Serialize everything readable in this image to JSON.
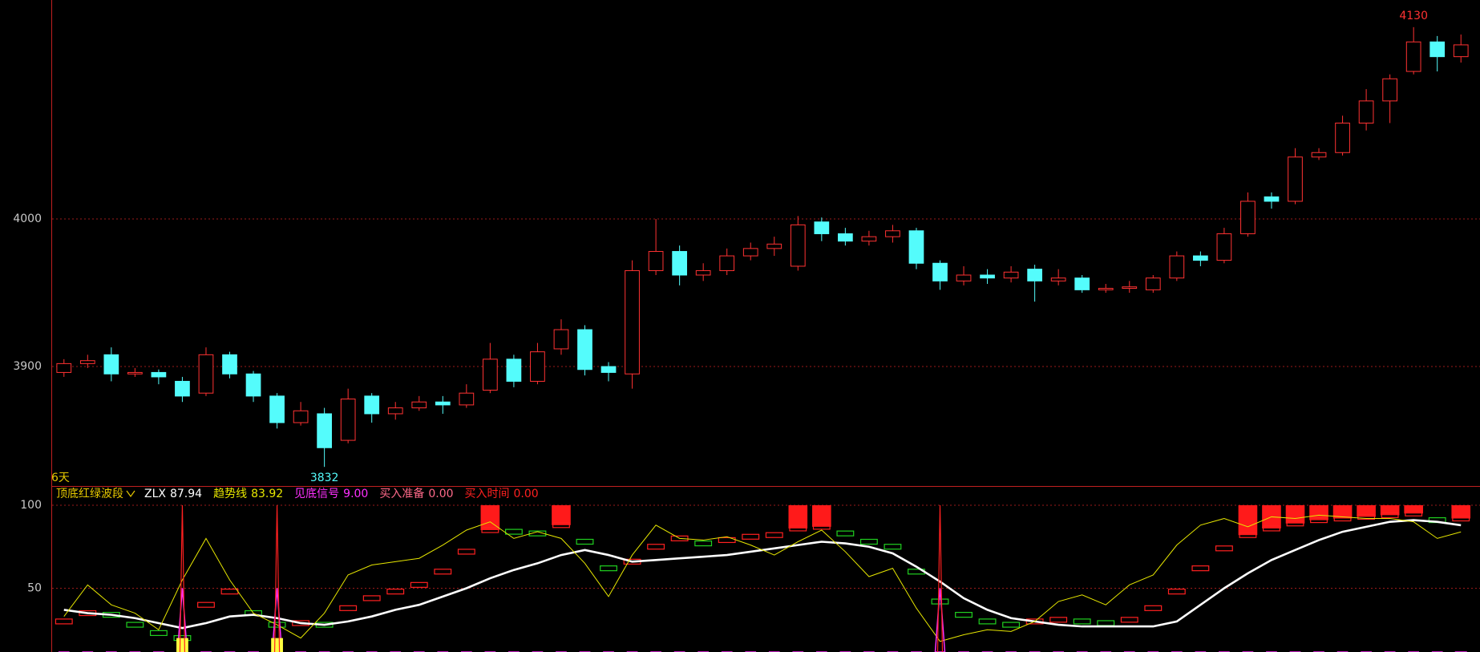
{
  "chart_data": [
    {
      "type": "candlestick",
      "period_label": "6天",
      "ylim": [
        3819.6,
        4148.4
      ],
      "yticks": [
        3900,
        4000
      ],
      "grid": true,
      "up_color": "#ff3232",
      "down_color": "#54fcfc",
      "open": [
        3896,
        3902,
        3908,
        3895,
        3896,
        3890,
        3882,
        3908,
        3895,
        3880,
        3862,
        3868,
        3850,
        3880,
        3868,
        3872,
        3876,
        3874,
        3884,
        3905,
        3890,
        3912,
        3925,
        3900,
        3895,
        3965,
        3978,
        3962,
        3965,
        3975,
        3980,
        3968,
        3998,
        3990,
        3985,
        3988,
        3992,
        3970,
        3958,
        3962,
        3960,
        3966,
        3958,
        3960,
        3952,
        3953,
        3952,
        3960,
        3975,
        3972,
        3990,
        4015,
        4012,
        4042,
        4045,
        4065,
        4080,
        4100,
        4120,
        4110
      ],
      "high": [
        3905,
        3908,
        3913,
        3899,
        3898,
        3893,
        3913,
        3910,
        3897,
        3882,
        3876,
        3872,
        3885,
        3882,
        3876,
        3880,
        3880,
        3888,
        3916,
        3908,
        3916,
        3932,
        3928,
        3903,
        3972,
        4000,
        3982,
        3970,
        3980,
        3984,
        3988,
        4002,
        4001,
        3994,
        3992,
        3996,
        3994,
        3972,
        3968,
        3966,
        3968,
        3969,
        3966,
        3962,
        3956,
        3958,
        3962,
        3978,
        3978,
        3994,
        4018,
        4018,
        4048,
        4048,
        4070,
        4088,
        4098,
        4130,
        4124,
        4125
      ],
      "low": [
        3893,
        3899,
        3890,
        3893,
        3888,
        3876,
        3880,
        3892,
        3876,
        3858,
        3860,
        3832,
        3848,
        3862,
        3864,
        3870,
        3868,
        3872,
        3882,
        3886,
        3888,
        3908,
        3894,
        3890,
        3885,
        3962,
        3955,
        3958,
        3962,
        3972,
        3975,
        3965,
        3985,
        3982,
        3982,
        3984,
        3966,
        3952,
        3955,
        3956,
        3957,
        3944,
        3955,
        3950,
        3950,
        3950,
        3950,
        3958,
        3968,
        3970,
        3988,
        4007,
        4010,
        4040,
        4043,
        4060,
        4065,
        4098,
        4100,
        4106
      ],
      "close": [
        3902,
        3904,
        3895,
        3896,
        3893,
        3880,
        3908,
        3895,
        3880,
        3862,
        3870,
        3845,
        3878,
        3868,
        3872,
        3876,
        3874,
        3882,
        3905,
        3890,
        3910,
        3925,
        3898,
        3896,
        3965,
        3978,
        3962,
        3965,
        3975,
        3980,
        3983,
        3996,
        3990,
        3985,
        3988,
        3992,
        3970,
        3958,
        3962,
        3960,
        3964,
        3958,
        3960,
        3952,
        3953,
        3954,
        3960,
        3975,
        3972,
        3990,
        4012,
        4012,
        4042,
        4045,
        4065,
        4080,
        4095,
        4120,
        4110,
        4118
      ],
      "annotations": [
        {
          "value": 4130,
          "label": "4130",
          "color": "#ff3232"
        },
        {
          "value": 3832,
          "label": "3832",
          "color": "#54fcfc"
        }
      ]
    },
    {
      "type": "line",
      "title": "顶底红绿波段",
      "ylim": [
        11.6,
        110.6
      ],
      "yticks": [
        50,
        100
      ],
      "grid": true,
      "band": {
        "up_color": "#ff2020",
        "down_color": "#20d020",
        "values": [
          30,
          35,
          34,
          28,
          23,
          20,
          40,
          48,
          35,
          28,
          29,
          28,
          38,
          44,
          48,
          52,
          60,
          72,
          85,
          84,
          83,
          88,
          78,
          62,
          66,
          75,
          80,
          77,
          79,
          81,
          82,
          86,
          87,
          83,
          78,
          75,
          60,
          42,
          34,
          30,
          28,
          30,
          31,
          30,
          29,
          31,
          38,
          48,
          62,
          74,
          82,
          86,
          89,
          91,
          92,
          93,
          94,
          95,
          91,
          92
        ],
        "top": [
          null,
          null,
          null,
          null,
          null,
          null,
          null,
          null,
          null,
          null,
          null,
          null,
          null,
          null,
          null,
          null,
          null,
          null,
          100,
          null,
          null,
          100,
          null,
          null,
          null,
          null,
          null,
          null,
          null,
          null,
          null,
          100,
          100,
          null,
          null,
          null,
          null,
          null,
          null,
          null,
          null,
          null,
          null,
          null,
          null,
          null,
          null,
          null,
          null,
          null,
          100,
          100,
          100,
          100,
          100,
          100,
          100,
          100,
          null,
          100
        ]
      },
      "series": [
        {
          "name": "ZLX",
          "color": "#ffffff",
          "style": "line",
          "last_label": "87.94",
          "values": [
            37,
            35,
            34,
            32,
            29,
            26,
            29,
            33,
            34,
            32,
            29,
            28,
            30,
            33,
            37,
            40,
            45,
            50,
            56,
            61,
            65,
            70,
            73,
            70,
            66,
            67,
            68,
            69,
            70,
            72,
            74,
            76,
            78,
            77,
            75,
            71,
            63,
            54,
            44,
            37,
            32,
            30,
            28,
            27,
            27,
            27,
            27,
            30,
            40,
            50,
            59,
            67,
            73,
            79,
            84,
            87,
            90,
            91,
            90,
            87.94
          ]
        },
        {
          "name": "趋势线",
          "color": "#e6e600",
          "style": "thin",
          "last_label": "83.92",
          "values": [
            33,
            52,
            40,
            35,
            25,
            55,
            80,
            55,
            35,
            28,
            20,
            35,
            58,
            64,
            66,
            68,
            76,
            85,
            90,
            80,
            84,
            80,
            65,
            45,
            70,
            88,
            80,
            79,
            81,
            76,
            70,
            78,
            85,
            72,
            57,
            62,
            38,
            18,
            22,
            25,
            24,
            30,
            42,
            46,
            40,
            52,
            58,
            76,
            88,
            92,
            87,
            93,
            92,
            94,
            93,
            92,
            92,
            90,
            80,
            83.92
          ]
        },
        {
          "name": "见底信号",
          "color": "#ff30ff",
          "style": "spike",
          "last_label": "9.00",
          "values": [
            0,
            0,
            0,
            0,
            0,
            50,
            0,
            0,
            0,
            50,
            0,
            0,
            0,
            0,
            0,
            0,
            0,
            0,
            0,
            0,
            0,
            0,
            0,
            0,
            0,
            0,
            0,
            0,
            0,
            0,
            0,
            0,
            0,
            0,
            0,
            0,
            0,
            50,
            0,
            0,
            0,
            0,
            0,
            0,
            0,
            0,
            0,
            0,
            0,
            0,
            0,
            0,
            0,
            0,
            0,
            0,
            0,
            0,
            0,
            9
          ]
        },
        {
          "name": "买入准备",
          "color": "#ff6a8a",
          "mark_color": "#ffff40",
          "style": "bar",
          "last_label": "0.00",
          "values": [
            0,
            0,
            0,
            0,
            0,
            20,
            0,
            0,
            0,
            20,
            0,
            0,
            0,
            0,
            0,
            0,
            0,
            0,
            0,
            0,
            0,
            0,
            0,
            0,
            0,
            0,
            0,
            0,
            0,
            0,
            0,
            0,
            0,
            0,
            0,
            0,
            0,
            0,
            0,
            0,
            0,
            0,
            0,
            0,
            0,
            0,
            0,
            0,
            0,
            0,
            0,
            0,
            0,
            0,
            0,
            0,
            0,
            0,
            0,
            0
          ]
        },
        {
          "name": "买入时间",
          "color": "#ff2020",
          "style": "needle",
          "last_label": "0.00",
          "values": [
            0,
            0,
            0,
            0,
            0,
            100,
            0,
            0,
            0,
            100,
            0,
            0,
            0,
            0,
            0,
            0,
            0,
            0,
            0,
            0,
            0,
            0,
            0,
            0,
            0,
            0,
            0,
            0,
            0,
            0,
            0,
            0,
            0,
            0,
            0,
            0,
            0,
            100,
            0,
            0,
            0,
            0,
            0,
            0,
            0,
            0,
            0,
            0,
            0,
            0,
            0,
            0,
            0,
            0,
            0,
            0,
            0,
            0,
            0,
            0
          ]
        }
      ]
    }
  ]
}
